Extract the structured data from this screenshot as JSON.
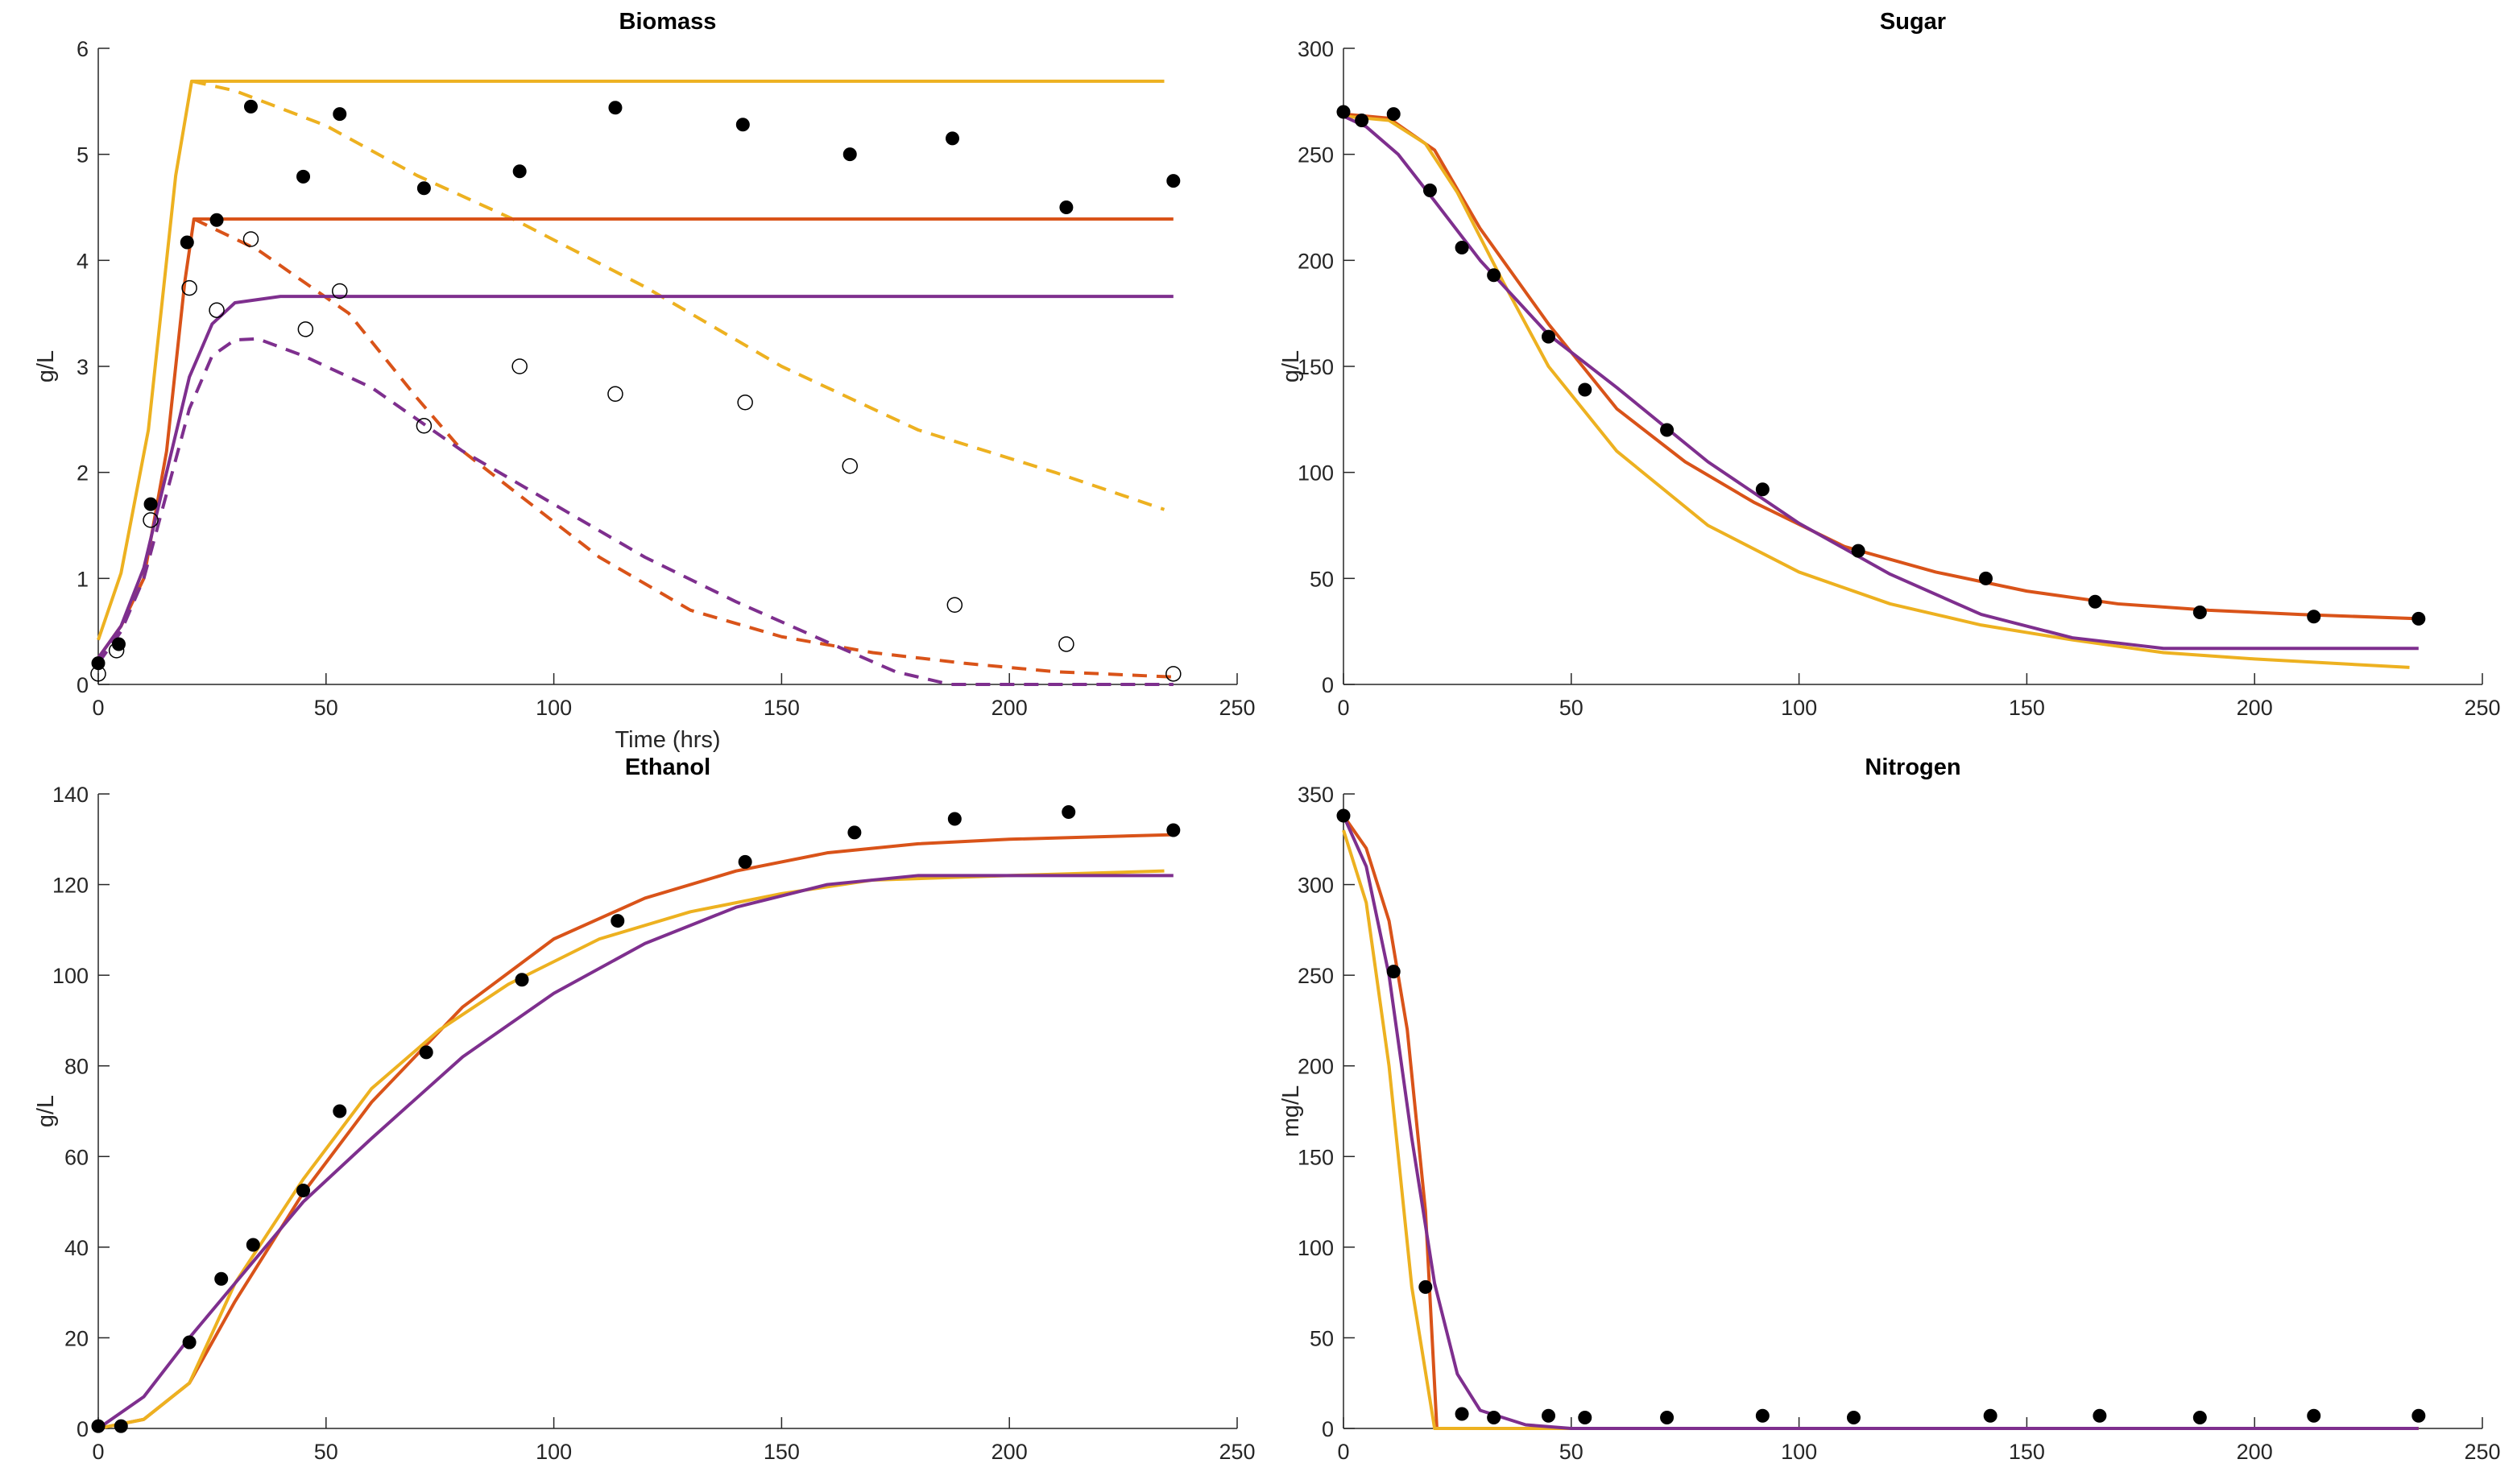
{
  "chart_data": [
    {
      "type": "line",
      "title": "Biomass",
      "xlabel": "Time (hrs)",
      "ylabel": "g/L",
      "xlim": [
        0,
        250
      ],
      "ylim": [
        0,
        6
      ],
      "xticks": [
        "0",
        "50",
        "100",
        "150",
        "200",
        "250"
      ],
      "yticks": [
        "0",
        "1",
        "2",
        "3",
        "4",
        "5",
        "6"
      ],
      "grid": false,
      "series": [
        {
          "name": "yellow-solid",
          "color": "#EDB120",
          "style": "solid",
          "x": [
            0,
            5,
            11,
            17,
            20.5,
            234
          ],
          "y": [
            0.42,
            1.05,
            2.4,
            4.8,
            5.69,
            5.69
          ]
        },
        {
          "name": "yellow-dashed",
          "color": "#EDB120",
          "style": "dashed",
          "x": [
            20.5,
            30,
            50,
            70,
            92,
            120,
            150,
            180,
            210,
            234
          ],
          "y": [
            5.69,
            5.6,
            5.27,
            4.8,
            4.37,
            3.75,
            3.0,
            2.4,
            2.0,
            1.65
          ]
        },
        {
          "name": "orange-solid",
          "color": "#D95319",
          "style": "solid",
          "x": [
            0,
            5,
            10,
            15,
            19,
            21,
            236
          ],
          "y": [
            0.25,
            0.55,
            1.0,
            2.2,
            3.8,
            4.39,
            4.39
          ]
        },
        {
          "name": "orange-dashed",
          "color": "#D95319",
          "style": "dashed",
          "x": [
            21,
            35,
            55,
            70,
            80,
            92,
            110,
            130,
            150,
            170,
            190,
            210,
            236
          ],
          "y": [
            4.39,
            4.1,
            3.5,
            2.7,
            2.2,
            1.8,
            1.2,
            0.7,
            0.45,
            0.3,
            0.2,
            0.12,
            0.07
          ]
        },
        {
          "name": "purple-solid",
          "color": "#7E2F8E",
          "style": "solid",
          "x": [
            0,
            5,
            10,
            15,
            20,
            25,
            30,
            40,
            236
          ],
          "y": [
            0.25,
            0.55,
            1.1,
            2.0,
            2.9,
            3.4,
            3.6,
            3.66,
            3.66
          ]
        },
        {
          "name": "purple-dashed",
          "color": "#7E2F8E",
          "style": "dashed",
          "x": [
            0,
            5,
            10,
            15,
            20,
            25,
            30,
            35,
            45,
            60,
            80,
            100,
            120,
            140,
            160,
            175,
            187,
            236
          ],
          "y": [
            0.2,
            0.5,
            1.0,
            1.8,
            2.6,
            3.1,
            3.25,
            3.26,
            3.1,
            2.8,
            2.2,
            1.7,
            1.2,
            0.78,
            0.4,
            0.12,
            0,
            0
          ]
        }
      ],
      "points": [
        {
          "name": "filled",
          "fill": true,
          "x": [
            0,
            4.5,
            11.5,
            19.5,
            26,
            33.5,
            45,
            53,
            71.5,
            92.5,
            113.5,
            141.5,
            165,
            187.5,
            212.5,
            236
          ],
          "y": [
            0.2,
            0.38,
            1.7,
            4.17,
            4.38,
            5.45,
            4.79,
            5.38,
            4.68,
            4.84,
            5.44,
            5.28,
            5.0,
            5.15,
            4.5,
            4.75
          ]
        },
        {
          "name": "open",
          "fill": false,
          "x": [
            0,
            4,
            11.5,
            20,
            26,
            33.5,
            45.5,
            53,
            71.5,
            92.5,
            113.5,
            142,
            165,
            188,
            212.5,
            236
          ],
          "y": [
            0.1,
            0.32,
            1.55,
            3.74,
            3.53,
            4.2,
            3.35,
            3.71,
            2.44,
            3.0,
            2.74,
            2.66,
            2.06,
            0.75,
            0.38,
            0.1
          ]
        }
      ]
    },
    {
      "type": "line",
      "title": "Sugar",
      "xlabel": "",
      "ylabel": "g/L",
      "xlim": [
        0,
        250
      ],
      "ylim": [
        0,
        300
      ],
      "xticks": [
        "0",
        "50",
        "100",
        "150",
        "200",
        "250"
      ],
      "yticks": [
        "0",
        "50",
        "100",
        "150",
        "200",
        "250",
        "300"
      ],
      "grid": false,
      "series": [
        {
          "name": "orange",
          "color": "#D95319",
          "style": "solid",
          "x": [
            0,
            10,
            20,
            30,
            45,
            60,
            75,
            90,
            110,
            130,
            150,
            170,
            190,
            210,
            236
          ],
          "y": [
            269,
            267,
            252,
            215,
            170,
            130,
            105,
            86,
            65,
            53,
            44,
            38,
            35,
            33,
            31
          ]
        },
        {
          "name": "yellow",
          "color": "#EDB120",
          "style": "solid",
          "x": [
            0,
            10,
            18,
            25,
            35,
            45,
            60,
            80,
            100,
            120,
            140,
            160,
            180,
            200,
            234
          ],
          "y": [
            268,
            266,
            255,
            232,
            190,
            150,
            110,
            75,
            53,
            38,
            28,
            21,
            15,
            12,
            8
          ]
        },
        {
          "name": "purple",
          "color": "#7E2F8E",
          "style": "solid",
          "x": [
            0,
            5,
            12,
            20,
            30,
            45,
            60,
            80,
            100,
            120,
            140,
            160,
            180,
            236
          ],
          "y": [
            268,
            263,
            250,
            228,
            200,
            165,
            140,
            105,
            76,
            52,
            33,
            22,
            17,
            17
          ]
        }
      ],
      "points": [
        {
          "name": "filled",
          "fill": true,
          "x": [
            0,
            4,
            11,
            19,
            26,
            33,
            45,
            53,
            71,
            92,
            113,
            141,
            165,
            188,
            213,
            236
          ],
          "y": [
            270,
            266,
            269,
            233,
            206,
            193,
            164,
            139,
            120,
            92,
            63,
            50,
            39,
            34,
            32,
            31
          ]
        }
      ]
    },
    {
      "type": "line",
      "title": "Ethanol",
      "xlabel": "",
      "ylabel": "g/L",
      "xlim": [
        0,
        250
      ],
      "ylim": [
        0,
        140
      ],
      "xticks": [
        "0",
        "50",
        "100",
        "150",
        "200",
        "250"
      ],
      "yticks": [
        "0",
        "20",
        "40",
        "60",
        "80",
        "100",
        "120",
        "140"
      ],
      "grid": false,
      "series": [
        {
          "name": "orange",
          "color": "#D95319",
          "style": "solid",
          "x": [
            0,
            10,
            20,
            30,
            45,
            60,
            80,
            100,
            120,
            140,
            160,
            180,
            200,
            236
          ],
          "y": [
            0,
            2,
            10,
            28,
            52,
            72,
            93,
            108,
            117,
            123,
            127,
            129,
            130,
            131
          ]
        },
        {
          "name": "yellow",
          "color": "#EDB120",
          "style": "solid",
          "x": [
            0,
            10,
            20,
            30,
            45,
            60,
            75,
            90,
            110,
            130,
            150,
            170,
            200,
            234
          ],
          "y": [
            0,
            2,
            10,
            32,
            55,
            75,
            88,
            98,
            108,
            114,
            118,
            121,
            122,
            123
          ]
        },
        {
          "name": "purple",
          "color": "#7E2F8E",
          "style": "solid",
          "x": [
            0,
            10,
            20,
            30,
            45,
            60,
            80,
            100,
            120,
            140,
            160,
            180,
            236
          ],
          "y": [
            0,
            7,
            20,
            32,
            50,
            64,
            82,
            96,
            107,
            115,
            120,
            122,
            122
          ]
        }
      ],
      "points": [
        {
          "name": "filled",
          "fill": true,
          "x": [
            0,
            5,
            20,
            27,
            34,
            45,
            53,
            72,
            93,
            114,
            142,
            166,
            188,
            213,
            236
          ],
          "y": [
            0.5,
            0.5,
            19,
            33,
            40.5,
            52.5,
            70,
            83,
            99,
            112,
            125,
            131.5,
            134.5,
            136,
            132
          ]
        }
      ]
    },
    {
      "type": "line",
      "title": "Nitrogen",
      "xlabel": "",
      "ylabel": "mg/L",
      "xlim": [
        0,
        250
      ],
      "ylim": [
        0,
        350
      ],
      "xticks": [
        "0",
        "50",
        "100",
        "150",
        "200",
        "250"
      ],
      "yticks": [
        "0",
        "50",
        "100",
        "150",
        "200",
        "250",
        "300",
        "350"
      ],
      "grid": false,
      "series": [
        {
          "name": "orange",
          "color": "#D95319",
          "style": "solid",
          "x": [
            0,
            5,
            10,
            14,
            18,
            20.5,
            236
          ],
          "y": [
            338,
            320,
            280,
            220,
            120,
            0,
            0
          ]
        },
        {
          "name": "yellow",
          "color": "#EDB120",
          "style": "solid",
          "x": [
            0,
            5,
            10,
            15,
            20,
            236
          ],
          "y": [
            330,
            290,
            200,
            78,
            0,
            0
          ]
        },
        {
          "name": "purple",
          "color": "#7E2F8E",
          "style": "solid",
          "x": [
            0,
            5,
            10,
            15,
            20,
            25,
            30,
            40,
            50,
            236
          ],
          "y": [
            338,
            310,
            250,
            160,
            80,
            30,
            10,
            2,
            0,
            0
          ]
        }
      ],
      "points": [
        {
          "name": "filled",
          "fill": true,
          "x": [
            0,
            11,
            18,
            26,
            33,
            45,
            53,
            71,
            92,
            112,
            142,
            166,
            188,
            213,
            236
          ],
          "y": [
            338,
            252,
            78,
            8,
            6,
            7,
            6,
            6,
            7,
            6,
            7,
            7,
            6,
            7,
            7
          ]
        }
      ]
    }
  ]
}
